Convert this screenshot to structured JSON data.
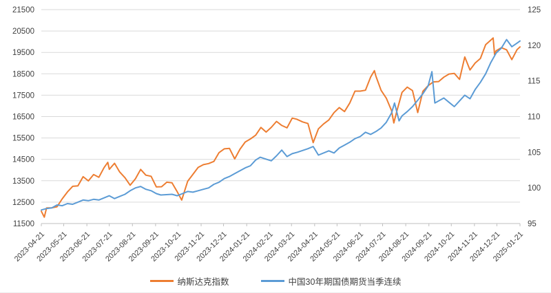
{
  "chart_data": {
    "type": "line",
    "title": "",
    "grid": true,
    "legend_position": "bottom",
    "left_axis": {
      "min": 11500,
      "max": 21500,
      "step": 1000,
      "tick_labels": [
        "21500",
        "20500",
        "19500",
        "18500",
        "17500",
        "16500",
        "15500",
        "14500",
        "13500",
        "12500",
        "11500"
      ]
    },
    "right_axis": {
      "min": 95,
      "max": 125,
      "step": 5,
      "tick_labels": [
        "125",
        "120",
        "115",
        "110",
        "105",
        "100",
        "95"
      ]
    },
    "x_tick_labels": [
      "2023-04-21",
      "2023-05-21",
      "2023-06-21",
      "2023-07-21",
      "2023-08-21",
      "2023-09-21",
      "2023-10-21",
      "2023-11-21",
      "2023-12-21",
      "2024-01-21",
      "2024-02-21",
      "2024-03-21",
      "2024-04-21",
      "2024-05-21",
      "2024-06-21",
      "2024-07-21",
      "2024-08-21",
      "2024-09-21",
      "2024-10-21",
      "2024-11-21",
      "2024-12-21",
      "2025-01-21"
    ],
    "x_range": [
      "2023-04-21",
      "2025-01-21"
    ],
    "colors": {
      "grid": "#d9d9d9",
      "axis": "#bfbfbf",
      "tick_text": "#404040"
    },
    "series": [
      {
        "name": "纳斯达克指数",
        "axis": "left",
        "color": "#ED7D31",
        "points": [
          [
            "2023-04-21",
            12072
          ],
          [
            "2023-04-25",
            11799
          ],
          [
            "2023-04-28",
            12227
          ],
          [
            "2023-05-05",
            12235
          ],
          [
            "2023-05-12",
            12285
          ],
          [
            "2023-05-19",
            12658
          ],
          [
            "2023-05-26",
            12976
          ],
          [
            "2023-06-02",
            13241
          ],
          [
            "2023-06-09",
            13259
          ],
          [
            "2023-06-16",
            13690
          ],
          [
            "2023-06-23",
            13493
          ],
          [
            "2023-06-30",
            13788
          ],
          [
            "2023-07-07",
            13661
          ],
          [
            "2023-07-14",
            14114
          ],
          [
            "2023-07-19",
            14358
          ],
          [
            "2023-07-21",
            14033
          ],
          [
            "2023-07-28",
            14317
          ],
          [
            "2023-08-04",
            13909
          ],
          [
            "2023-08-11",
            13645
          ],
          [
            "2023-08-18",
            13291
          ],
          [
            "2023-08-25",
            13591
          ],
          [
            "2023-09-01",
            14032
          ],
          [
            "2023-09-08",
            13762
          ],
          [
            "2023-09-15",
            13708
          ],
          [
            "2023-09-22",
            13212
          ],
          [
            "2023-09-29",
            13219
          ],
          [
            "2023-10-06",
            13431
          ],
          [
            "2023-10-13",
            13407
          ],
          [
            "2023-10-20",
            12984
          ],
          [
            "2023-10-26",
            12595
          ],
          [
            "2023-11-03",
            13478
          ],
          [
            "2023-11-10",
            13798
          ],
          [
            "2023-11-17",
            14125
          ],
          [
            "2023-11-24",
            14251
          ],
          [
            "2023-12-01",
            14305
          ],
          [
            "2023-12-08",
            14404
          ],
          [
            "2023-12-15",
            14814
          ],
          [
            "2023-12-22",
            14993
          ],
          [
            "2023-12-29",
            15011
          ],
          [
            "2024-01-05",
            14524
          ],
          [
            "2024-01-12",
            14973
          ],
          [
            "2024-01-19",
            15311
          ],
          [
            "2024-01-26",
            15455
          ],
          [
            "2024-02-02",
            15629
          ],
          [
            "2024-02-09",
            15991
          ],
          [
            "2024-02-16",
            15776
          ],
          [
            "2024-02-23",
            15997
          ],
          [
            "2024-03-01",
            16275
          ],
          [
            "2024-03-08",
            16085
          ],
          [
            "2024-03-15",
            15973
          ],
          [
            "2024-03-22",
            16428
          ],
          [
            "2024-03-28",
            16379
          ],
          [
            "2024-04-05",
            16249
          ],
          [
            "2024-04-12",
            16175
          ],
          [
            "2024-04-19",
            15282
          ],
          [
            "2024-04-26",
            15928
          ],
          [
            "2024-05-03",
            16156
          ],
          [
            "2024-05-10",
            16341
          ],
          [
            "2024-05-17",
            16686
          ],
          [
            "2024-05-24",
            16921
          ],
          [
            "2024-05-31",
            16735
          ],
          [
            "2024-06-07",
            17133
          ],
          [
            "2024-06-14",
            17689
          ],
          [
            "2024-06-21",
            17689
          ],
          [
            "2024-06-28",
            17733
          ],
          [
            "2024-07-05",
            18353
          ],
          [
            "2024-07-10",
            18647
          ],
          [
            "2024-07-12",
            18398
          ],
          [
            "2024-07-19",
            17727
          ],
          [
            "2024-07-26",
            17358
          ],
          [
            "2024-08-02",
            16776
          ],
          [
            "2024-08-05",
            16200
          ],
          [
            "2024-08-09",
            16745
          ],
          [
            "2024-08-16",
            17632
          ],
          [
            "2024-08-23",
            17877
          ],
          [
            "2024-08-30",
            17714
          ],
          [
            "2024-09-06",
            16691
          ],
          [
            "2024-09-13",
            17684
          ],
          [
            "2024-09-20",
            17948
          ],
          [
            "2024-09-27",
            18120
          ],
          [
            "2024-10-04",
            18138
          ],
          [
            "2024-10-11",
            18343
          ],
          [
            "2024-10-18",
            18490
          ],
          [
            "2024-10-25",
            18519
          ],
          [
            "2024-11-01",
            18240
          ],
          [
            "2024-11-08",
            19287
          ],
          [
            "2024-11-15",
            18680
          ],
          [
            "2024-11-22",
            19004
          ],
          [
            "2024-11-29",
            19218
          ],
          [
            "2024-12-06",
            19860
          ],
          [
            "2024-12-16",
            20174
          ],
          [
            "2024-12-18",
            19393
          ],
          [
            "2024-12-20",
            19573
          ],
          [
            "2024-12-27",
            19722
          ],
          [
            "2025-01-03",
            19622
          ],
          [
            "2025-01-10",
            19162
          ],
          [
            "2025-01-17",
            19630
          ],
          [
            "2025-01-21",
            19757
          ]
        ]
      },
      {
        "name": "中国30年期国债期货当季连续",
        "axis": "right",
        "color": "#5B9BD5",
        "points": [
          [
            "2023-04-21",
            96.9
          ],
          [
            "2023-04-28",
            97.1
          ],
          [
            "2023-05-05",
            97.2
          ],
          [
            "2023-05-12",
            97.6
          ],
          [
            "2023-05-19",
            97.5
          ],
          [
            "2023-05-26",
            97.8
          ],
          [
            "2023-06-02",
            97.7
          ],
          [
            "2023-06-09",
            98.0
          ],
          [
            "2023-06-16",
            98.3
          ],
          [
            "2023-06-23",
            98.2
          ],
          [
            "2023-06-30",
            98.4
          ],
          [
            "2023-07-07",
            98.3
          ],
          [
            "2023-07-14",
            98.6
          ],
          [
            "2023-07-21",
            98.9
          ],
          [
            "2023-07-28",
            98.5
          ],
          [
            "2023-08-04",
            98.8
          ],
          [
            "2023-08-11",
            99.1
          ],
          [
            "2023-08-18",
            99.6
          ],
          [
            "2023-08-25",
            100.0
          ],
          [
            "2023-09-01",
            100.2
          ],
          [
            "2023-09-08",
            99.8
          ],
          [
            "2023-09-15",
            99.6
          ],
          [
            "2023-09-22",
            99.2
          ],
          [
            "2023-09-28",
            99.0
          ],
          [
            "2023-10-13",
            99.1
          ],
          [
            "2023-10-20",
            98.9
          ],
          [
            "2023-10-27",
            99.2
          ],
          [
            "2023-11-03",
            99.5
          ],
          [
            "2023-11-10",
            99.4
          ],
          [
            "2023-11-17",
            99.6
          ],
          [
            "2023-11-24",
            99.8
          ],
          [
            "2023-12-01",
            100.0
          ],
          [
            "2023-12-08",
            100.5
          ],
          [
            "2023-12-15",
            100.8
          ],
          [
            "2023-12-22",
            101.3
          ],
          [
            "2023-12-29",
            101.6
          ],
          [
            "2024-01-05",
            102.0
          ],
          [
            "2024-01-12",
            102.4
          ],
          [
            "2024-01-19",
            102.8
          ],
          [
            "2024-01-26",
            103.1
          ],
          [
            "2024-02-02",
            103.9
          ],
          [
            "2024-02-08",
            104.3
          ],
          [
            "2024-02-23",
            103.8
          ],
          [
            "2024-03-01",
            104.5
          ],
          [
            "2024-03-08",
            105.3
          ],
          [
            "2024-03-15",
            104.4
          ],
          [
            "2024-03-22",
            104.8
          ],
          [
            "2024-03-29",
            105.0
          ],
          [
            "2024-04-12",
            105.5
          ],
          [
            "2024-04-19",
            105.8
          ],
          [
            "2024-04-26",
            104.6
          ],
          [
            "2024-05-10",
            105.2
          ],
          [
            "2024-05-17",
            104.9
          ],
          [
            "2024-05-24",
            105.6
          ],
          [
            "2024-05-31",
            106.0
          ],
          [
            "2024-06-07",
            106.4
          ],
          [
            "2024-06-14",
            106.9
          ],
          [
            "2024-06-21",
            107.2
          ],
          [
            "2024-06-28",
            107.8
          ],
          [
            "2024-07-05",
            107.5
          ],
          [
            "2024-07-12",
            107.9
          ],
          [
            "2024-07-19",
            108.4
          ],
          [
            "2024-07-26",
            109.2
          ],
          [
            "2024-08-02",
            110.5
          ],
          [
            "2024-08-06",
            111.9
          ],
          [
            "2024-08-12",
            109.4
          ],
          [
            "2024-08-16",
            110.1
          ],
          [
            "2024-08-23",
            110.7
          ],
          [
            "2024-08-30",
            111.4
          ],
          [
            "2024-09-06",
            112.3
          ],
          [
            "2024-09-13",
            113.2
          ],
          [
            "2024-09-20",
            114.3
          ],
          [
            "2024-09-25",
            116.3
          ],
          [
            "2024-09-29",
            111.9
          ],
          [
            "2024-10-11",
            112.6
          ],
          [
            "2024-10-18",
            112.0
          ],
          [
            "2024-10-25",
            111.4
          ],
          [
            "2024-11-01",
            112.2
          ],
          [
            "2024-11-08",
            113.0
          ],
          [
            "2024-11-15",
            112.5
          ],
          [
            "2024-11-22",
            113.8
          ],
          [
            "2024-11-29",
            114.8
          ],
          [
            "2024-12-06",
            116.0
          ],
          [
            "2024-12-13",
            117.6
          ],
          [
            "2024-12-20",
            118.9
          ],
          [
            "2024-12-27",
            119.6
          ],
          [
            "2025-01-03",
            120.8
          ],
          [
            "2025-01-10",
            119.8
          ],
          [
            "2025-01-17",
            120.3
          ],
          [
            "2025-01-21",
            120.6
          ]
        ]
      }
    ]
  },
  "legend": {
    "items": [
      {
        "label": "纳斯达克指数",
        "color": "#ED7D31"
      },
      {
        "label": "中国30年期国债期货当季连续",
        "color": "#5B9BD5"
      }
    ]
  }
}
